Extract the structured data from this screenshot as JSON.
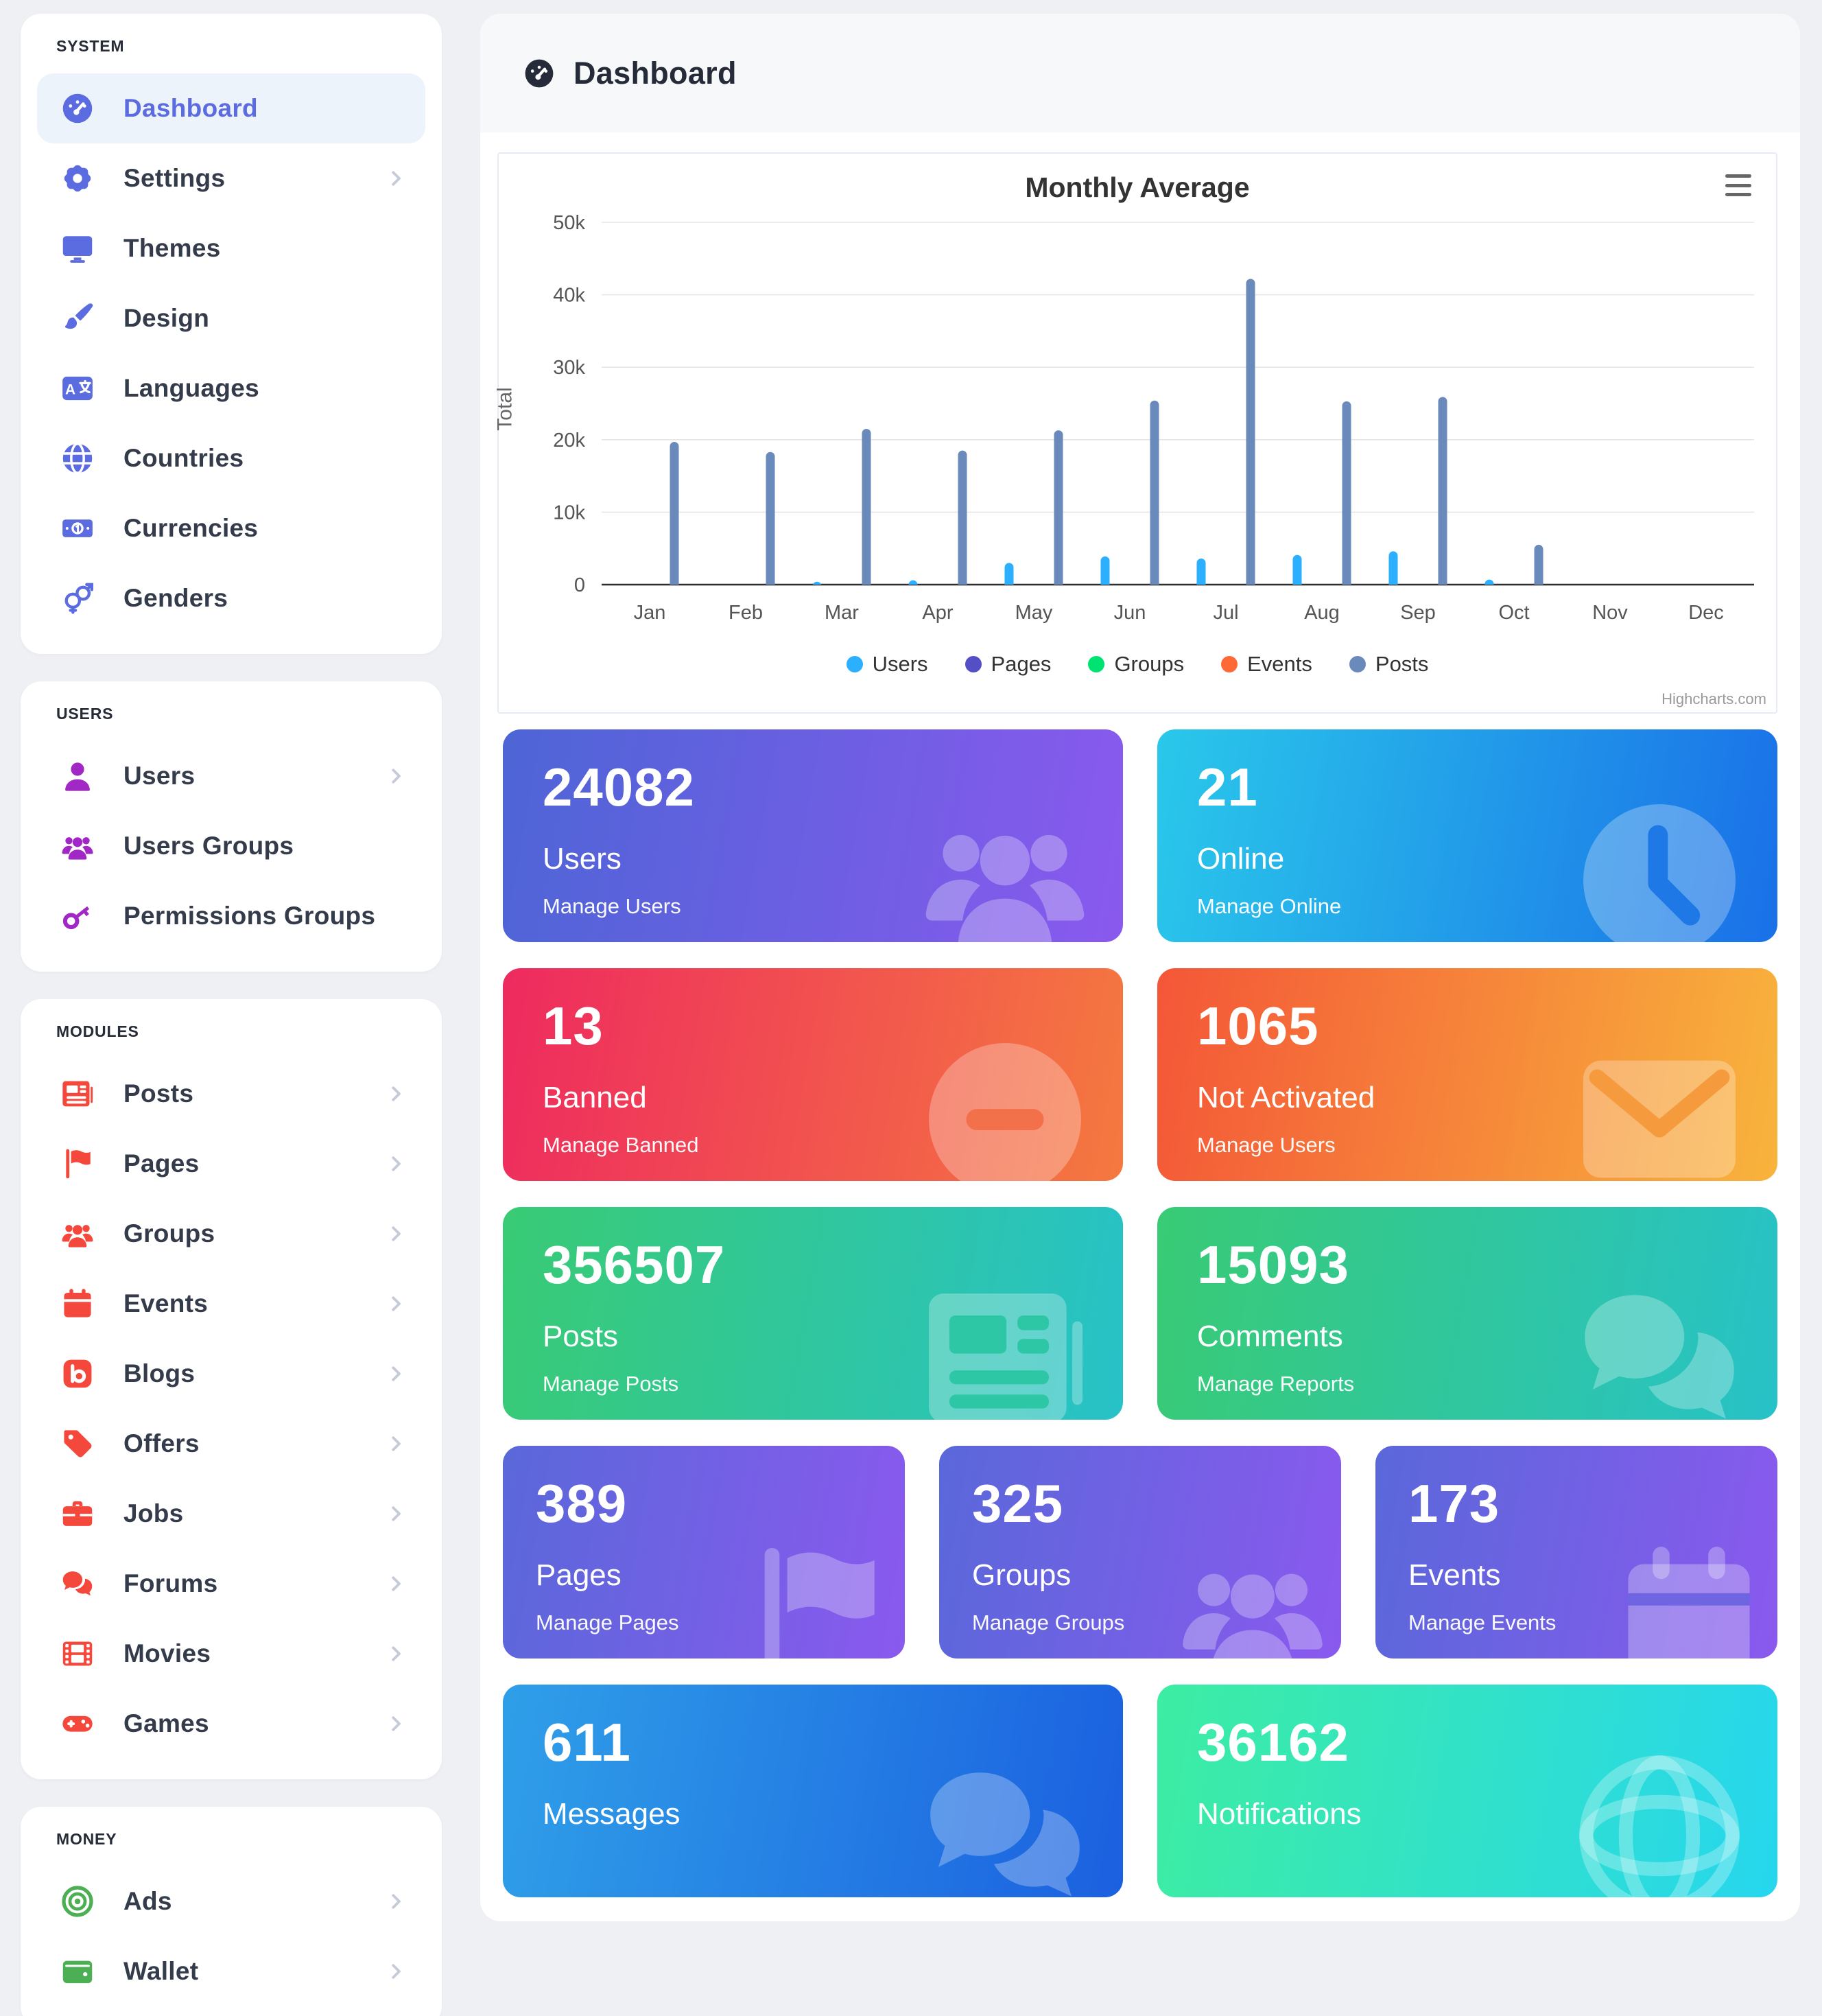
{
  "header": {
    "title": "Dashboard",
    "icon": "gauge"
  },
  "sidebar": {
    "sections": [
      {
        "title": "SYSTEM",
        "items": [
          {
            "label": "Dashboard",
            "icon": "gauge",
            "active": true
          },
          {
            "label": "Settings",
            "icon": "gear",
            "chevron": true
          },
          {
            "label": "Themes",
            "icon": "desktop"
          },
          {
            "label": "Design",
            "icon": "brush"
          },
          {
            "label": "Languages",
            "icon": "language"
          },
          {
            "label": "Countries",
            "icon": "globe"
          },
          {
            "label": "Currencies",
            "icon": "money"
          },
          {
            "label": "Genders",
            "icon": "genders"
          }
        ]
      },
      {
        "title": "USERS",
        "items": [
          {
            "label": "Users",
            "icon": "user",
            "chevron": true
          },
          {
            "label": "Users Groups",
            "icon": "users"
          },
          {
            "label": "Permissions Groups",
            "icon": "key"
          }
        ]
      },
      {
        "title": "MODULES",
        "items": [
          {
            "label": "Posts",
            "icon": "newspaper",
            "chevron": true
          },
          {
            "label": "Pages",
            "icon": "flag",
            "chevron": true
          },
          {
            "label": "Groups",
            "icon": "users",
            "chevron": true
          },
          {
            "label": "Events",
            "icon": "calendar",
            "chevron": true
          },
          {
            "label": "Blogs",
            "icon": "blog",
            "chevron": true
          },
          {
            "label": "Offers",
            "icon": "tag",
            "chevron": true
          },
          {
            "label": "Jobs",
            "icon": "briefcase",
            "chevron": true
          },
          {
            "label": "Forums",
            "icon": "comments",
            "chevron": true
          },
          {
            "label": "Movies",
            "icon": "film",
            "chevron": true
          },
          {
            "label": "Games",
            "icon": "gamepad",
            "chevron": true
          }
        ]
      },
      {
        "title": "MONEY",
        "items": [
          {
            "label": "Ads",
            "icon": "bullseye",
            "chevron": true
          },
          {
            "label": "Wallet",
            "icon": "wallet",
            "chevron": true
          }
        ]
      }
    ]
  },
  "chart_data": {
    "type": "bar",
    "title": "Monthly Average",
    "ylabel": "Total",
    "xlabel": "",
    "categories": [
      "Jan",
      "Feb",
      "Mar",
      "Apr",
      "May",
      "Jun",
      "Jul",
      "Aug",
      "Sep",
      "Oct",
      "Nov",
      "Dec"
    ],
    "series": [
      {
        "name": "Users",
        "color": "#2caffe",
        "values": [
          0,
          0,
          400,
          600,
          3000,
          3900,
          3600,
          4100,
          4600,
          700,
          0,
          0
        ]
      },
      {
        "name": "Pages",
        "color": "#544fc5",
        "values": [
          0,
          0,
          0,
          0,
          0,
          0,
          0,
          0,
          0,
          0,
          0,
          0
        ]
      },
      {
        "name": "Groups",
        "color": "#00e272",
        "values": [
          0,
          0,
          0,
          0,
          0,
          0,
          0,
          0,
          0,
          0,
          0,
          0
        ]
      },
      {
        "name": "Events",
        "color": "#fe6a35",
        "values": [
          0,
          0,
          0,
          0,
          0,
          0,
          0,
          0,
          0,
          0,
          0,
          0
        ]
      },
      {
        "name": "Posts",
        "color": "#6b8abc",
        "values": [
          19700,
          18300,
          21500,
          18500,
          21300,
          25400,
          42200,
          25300,
          25900,
          5500,
          0,
          0
        ]
      }
    ],
    "ylim": [
      0,
      50000
    ],
    "yticks": [
      "0",
      "10k",
      "20k",
      "30k",
      "40k",
      "50k"
    ],
    "grid": true,
    "legend_position": "bottom",
    "credit": "Highcharts.com"
  },
  "cards": [
    {
      "value": "24082",
      "label": "Users",
      "sublabel": "Manage Users",
      "icon": "users",
      "gradient": [
        "#4d65d6",
        "#8a59ee"
      ],
      "accent": "#7c63e4"
    },
    {
      "value": "21",
      "label": "Online",
      "sublabel": "Manage Online",
      "icon": "clock",
      "gradient": [
        "#2ac8ea",
        "#1a70e8"
      ],
      "accent": "#1e78e6"
    },
    {
      "value": "13",
      "label": "Banned",
      "sublabel": "Manage Banned",
      "icon": "minus-circle",
      "gradient": [
        "#ee2a5f",
        "#f5793f"
      ],
      "accent": "#f3714a"
    },
    {
      "value": "1065",
      "label": "Not Activated",
      "sublabel": "Manage Users",
      "icon": "envelope",
      "gradient": [
        "#f45638",
        "#f8b43c"
      ],
      "accent": "#f69a3e"
    },
    {
      "value": "356507",
      "label": "Posts",
      "sublabel": "Manage Posts",
      "icon": "newspaper",
      "gradient": [
        "#39cb74",
        "#27c2c8"
      ],
      "accent": "#2dc7a6"
    },
    {
      "value": "15093",
      "label": "Comments",
      "sublabel": "Manage Reports",
      "icon": "comments",
      "gradient": [
        "#39cb74",
        "#27c2c8"
      ],
      "accent": "#2dc7a6"
    },
    {
      "value": "389",
      "label": "Pages",
      "sublabel": "Manage Pages",
      "icon": "flag",
      "gradient": [
        "#5a68da",
        "#8a59ee"
      ],
      "accent": "#ffffff"
    },
    {
      "value": "325",
      "label": "Groups",
      "sublabel": "Manage Groups",
      "icon": "users",
      "gradient": [
        "#5a68da",
        "#8a59ee"
      ],
      "accent": "#ffffff"
    },
    {
      "value": "173",
      "label": "Events",
      "sublabel": "Manage Events",
      "icon": "calendar",
      "gradient": [
        "#5a68da",
        "#8a59ee"
      ],
      "accent": "#6f64e2"
    },
    {
      "value": "611",
      "label": "Messages",
      "sublabel": "",
      "icon": "comments",
      "gradient": [
        "#2f9fe8",
        "#1b60e0"
      ],
      "accent": "#ffffff"
    },
    {
      "value": "36162",
      "label": "Notifications",
      "sublabel": "",
      "icon": "globe-wire",
      "gradient": [
        "#3deda2",
        "#26d6ee"
      ],
      "accent": "#ffffff"
    }
  ]
}
